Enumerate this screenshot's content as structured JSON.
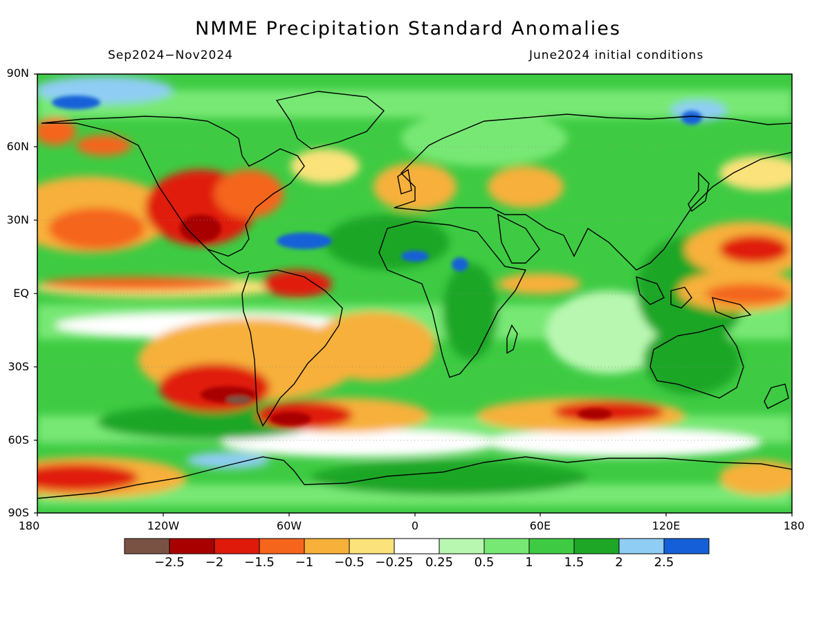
{
  "title": "NMME Precipitation Standard Anomalies",
  "subtitle_left": "Sep2024−Nov2024",
  "subtitle_right": "June2024 initial conditions",
  "lat_labels": [
    "90N",
    "60N",
    "30N",
    "EQ",
    "30S",
    "60S",
    "90S"
  ],
  "lon_labels": [
    "180",
    "120W",
    "60W",
    "0",
    "60E",
    "120E",
    "180"
  ],
  "colorbar": {
    "colors": [
      "#7a5243",
      "#a80000",
      "#e01a0a",
      "#f5651c",
      "#f7b03a",
      "#fbe27a",
      "#ffffff",
      "#b8f7b0",
      "#78e874",
      "#3ecb43",
      "#1ea627",
      "#90cdf5",
      "#1560d8"
    ],
    "labels": [
      "−2.5",
      "−2",
      "−1.5",
      "−1",
      "−0.5",
      "−0.25",
      "0.25",
      "0.5",
      "1",
      "1.5",
      "2",
      "2.5"
    ]
  },
  "map_colors": {
    "ocean_base": "#3ecb43",
    "coast": "#000000"
  }
}
